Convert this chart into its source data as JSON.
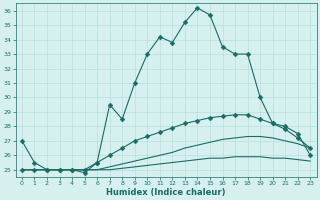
{
  "xlabel": "Humidex (Indice chaleur)",
  "background_color": "#d6f0f0",
  "grid_color": "#b8dede",
  "line_color": "#1a6b62",
  "xlim": [
    -0.5,
    23.5
  ],
  "ylim": [
    24.5,
    36.5
  ],
  "xticks": [
    0,
    1,
    2,
    3,
    4,
    5,
    6,
    7,
    8,
    9,
    10,
    11,
    12,
    13,
    14,
    15,
    16,
    17,
    18,
    19,
    20,
    21,
    22,
    23
  ],
  "yticks": [
    25,
    26,
    27,
    28,
    29,
    30,
    31,
    32,
    33,
    34,
    35,
    36
  ],
  "series": [
    {
      "x": [
        0,
        1,
        2,
        3,
        4,
        5,
        6,
        7,
        8,
        9,
        10,
        11,
        12,
        13,
        14,
        15,
        16,
        17,
        18,
        19,
        20,
        21,
        22,
        23
      ],
      "y": [
        27.0,
        25.5,
        25.0,
        25.0,
        25.0,
        24.8,
        25.5,
        29.5,
        28.5,
        31.0,
        33.0,
        34.2,
        33.8,
        35.2,
        36.2,
        35.7,
        33.5,
        33.0,
        33.0,
        30.0,
        28.2,
        28.0,
        27.5,
        26.0
      ],
      "marker": "D",
      "markersize": 2.5
    },
    {
      "x": [
        0,
        1,
        2,
        3,
        4,
        5,
        6,
        7,
        8,
        9,
        10,
        11,
        12,
        13,
        14,
        15,
        16,
        17,
        18,
        19,
        20,
        21,
        22,
        23
      ],
      "y": [
        25.0,
        25.0,
        25.0,
        25.0,
        25.0,
        25.0,
        25.5,
        26.0,
        26.5,
        27.0,
        27.3,
        27.6,
        27.9,
        28.2,
        28.4,
        28.6,
        28.7,
        28.8,
        28.8,
        28.5,
        28.2,
        27.8,
        27.2,
        26.5
      ],
      "marker": "D",
      "markersize": 2.5
    },
    {
      "x": [
        0,
        1,
        2,
        3,
        4,
        5,
        6,
        7,
        8,
        9,
        10,
        11,
        12,
        13,
        14,
        15,
        16,
        17,
        18,
        19,
        20,
        21,
        22,
        23
      ],
      "y": [
        25.0,
        25.0,
        25.0,
        25.0,
        25.0,
        25.0,
        25.0,
        25.2,
        25.4,
        25.6,
        25.8,
        26.0,
        26.2,
        26.5,
        26.7,
        26.9,
        27.1,
        27.2,
        27.3,
        27.3,
        27.2,
        27.0,
        26.8,
        26.5
      ],
      "marker": null,
      "markersize": 0
    },
    {
      "x": [
        0,
        1,
        2,
        3,
        4,
        5,
        6,
        7,
        8,
        9,
        10,
        11,
        12,
        13,
        14,
        15,
        16,
        17,
        18,
        19,
        20,
        21,
        22,
        23
      ],
      "y": [
        25.0,
        25.0,
        25.0,
        25.0,
        25.0,
        25.0,
        25.0,
        25.0,
        25.1,
        25.2,
        25.3,
        25.4,
        25.5,
        25.6,
        25.7,
        25.8,
        25.8,
        25.9,
        25.9,
        25.9,
        25.8,
        25.8,
        25.7,
        25.6
      ],
      "marker": null,
      "markersize": 0
    }
  ]
}
